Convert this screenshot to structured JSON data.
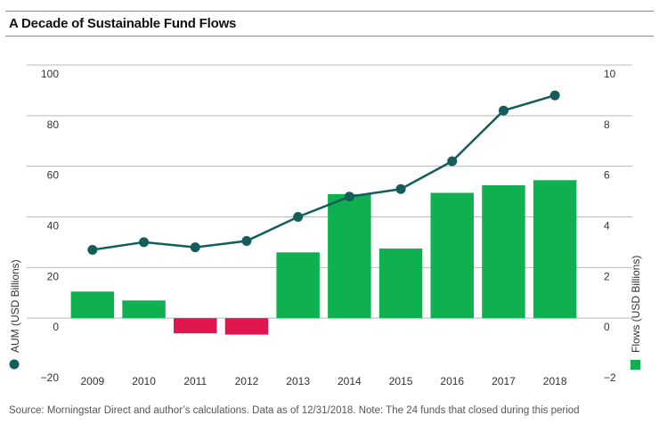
{
  "title": "A Decade of Sustainable Fund Flows",
  "note": "Source: Morningstar Direct and author’s calculations. Data as of 12/31/2018. Note: The 24 funds that closed during this period",
  "colors": {
    "line": "#135e5b",
    "positive_bar": "#0fb04f",
    "negative_bar": "#e0174f",
    "grid": "#b9b9b9"
  },
  "chart_data": {
    "type": "bar",
    "categories": [
      "2009",
      "2010",
      "2011",
      "2012",
      "2013",
      "2014",
      "2015",
      "2016",
      "2017",
      "2018"
    ],
    "series": [
      {
        "name": "Flows (USD Billions)",
        "type": "bar",
        "axis": "right",
        "values": [
          1.05,
          0.7,
          -0.6,
          -0.65,
          2.6,
          4.9,
          2.75,
          4.95,
          5.25,
          5.45
        ]
      },
      {
        "name": "AUM (USD Billions)",
        "type": "line",
        "axis": "left",
        "values": [
          27,
          30,
          28,
          30.5,
          40,
          48,
          51,
          62,
          82,
          88
        ]
      }
    ],
    "left_axis": {
      "label": "AUM (USD Billions)",
      "ylim": [
        -20,
        100
      ],
      "ticks": [
        "100",
        "80",
        "60",
        "40",
        "20",
        "0",
        "−20"
      ]
    },
    "right_axis": {
      "label": "Flows (USD Billions)",
      "ylim": [
        -2,
        10
      ],
      "ticks": [
        "10",
        "8",
        "6",
        "4",
        "2",
        "0",
        "−2"
      ]
    },
    "grid": true,
    "legend": "axis-label markers"
  }
}
